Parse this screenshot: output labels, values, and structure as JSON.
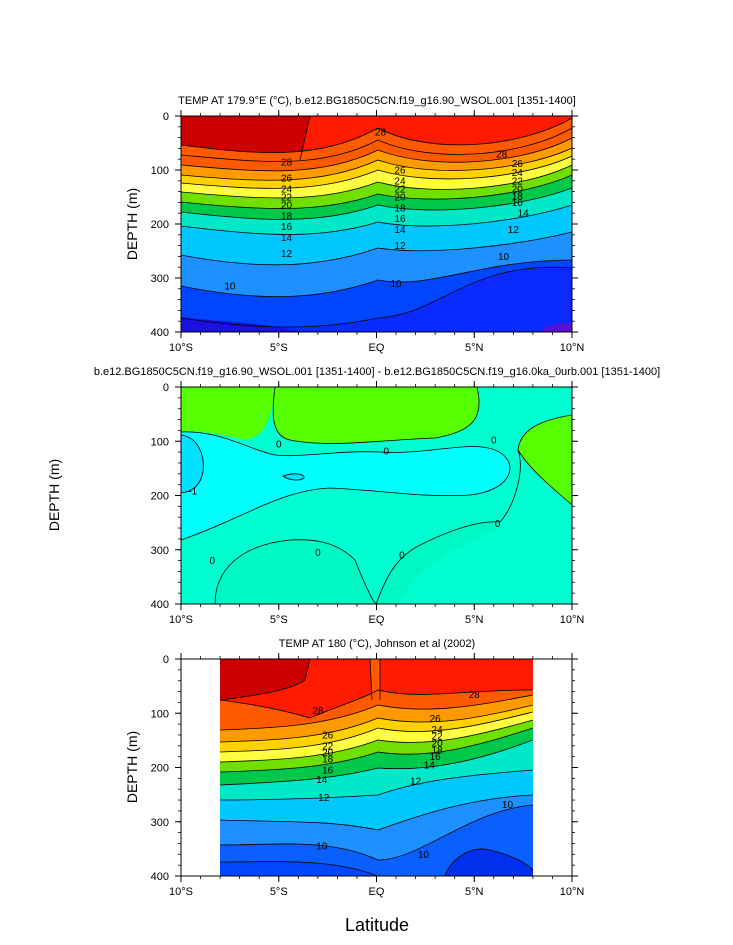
{
  "page": {
    "outer_ylabel": "DEPTH (m)",
    "xlabel": "Latitude"
  },
  "colors": {
    "warm_28plus": "#cc0000",
    "t26_28": "#ff1a00",
    "t24_26": "#ff5a00",
    "t22_24": "#ff9a00",
    "t20_22": "#ffd200",
    "t18_20": "#ffff40",
    "t16_18": "#70e000",
    "t14_16": "#00c84a",
    "t12_14": "#00e8c8",
    "t10_12": "#00c8ff",
    "t8_10": "#1e90ff",
    "t6_8": "#0046ff",
    "t_lt6": "#2a1aff",
    "diff_pos": "#55ff00",
    "diff_0": "#00ffd0",
    "diff_neg": "#00e0ff"
  },
  "chart_data": [
    {
      "type": "contour",
      "title": "TEMP AT 179.9°E (°C), b.e12.BG1850C5CN.f19_g16.90_WSOL.001 [1351-1400]",
      "ylabel": "DEPTH (m)",
      "xticks": [
        "10°S",
        "5°S",
        "EQ",
        "5°N",
        "10°N"
      ],
      "yticks": [
        "0",
        "100",
        "200",
        "300",
        "400"
      ],
      "xlim": [
        -10,
        10
      ],
      "ylim": [
        400,
        0
      ],
      "contour_labels": [
        {
          "text": "28",
          "lat": 0.2,
          "depth": 30
        },
        {
          "text": "28",
          "lat": 6.4,
          "depth": 70
        },
        {
          "text": "28",
          "lat": -4.6,
          "depth": 85
        },
        {
          "text": "26",
          "lat": -4.6,
          "depth": 115
        },
        {
          "text": "26",
          "lat": 1.2,
          "depth": 100
        },
        {
          "text": "26",
          "lat": 7.2,
          "depth": 88
        },
        {
          "text": "24",
          "lat": -4.6,
          "depth": 135
        },
        {
          "text": "24",
          "lat": 1.2,
          "depth": 120
        },
        {
          "text": "24",
          "lat": 7.2,
          "depth": 105
        },
        {
          "text": "22",
          "lat": -4.6,
          "depth": 150
        },
        {
          "text": "22",
          "lat": 1.2,
          "depth": 135
        },
        {
          "text": "22",
          "lat": 7.2,
          "depth": 120
        },
        {
          "text": "20",
          "lat": -4.6,
          "depth": 165
        },
        {
          "text": "20",
          "lat": 1.2,
          "depth": 150
        },
        {
          "text": "20",
          "lat": 7.2,
          "depth": 135
        },
        {
          "text": "18",
          "lat": -4.6,
          "depth": 185
        },
        {
          "text": "18",
          "lat": 1.2,
          "depth": 170
        },
        {
          "text": "18",
          "lat": 7.2,
          "depth": 148
        },
        {
          "text": "16",
          "lat": -4.6,
          "depth": 205
        },
        {
          "text": "16",
          "lat": 1.2,
          "depth": 190
        },
        {
          "text": "16",
          "lat": 7.2,
          "depth": 160
        },
        {
          "text": "14",
          "lat": -4.6,
          "depth": 225
        },
        {
          "text": "14",
          "lat": 1.2,
          "depth": 210
        },
        {
          "text": "14",
          "lat": 7.5,
          "depth": 180
        },
        {
          "text": "12",
          "lat": -4.6,
          "depth": 255
        },
        {
          "text": "12",
          "lat": 1.2,
          "depth": 240
        },
        {
          "text": "12",
          "lat": 7.0,
          "depth": 210
        },
        {
          "text": "10",
          "lat": -7.5,
          "depth": 315
        },
        {
          "text": "10",
          "lat": 1.0,
          "depth": 310
        },
        {
          "text": "10",
          "lat": 6.5,
          "depth": 260
        }
      ]
    },
    {
      "type": "contour",
      "title": "b.e12.BG1850C5CN.f19_g16.90_WSOL.001 [1351-1400] - b.e12.BG1850C5CN.f19_g16.0ka_0urb.001 [1351-1400]",
      "ylabel": "DEPTH (m)",
      "xticks": [
        "10°S",
        "5°S",
        "EQ",
        "5°N",
        "10°N"
      ],
      "yticks": [
        "0",
        "100",
        "200",
        "300",
        "400"
      ],
      "xlim": [
        -10,
        10
      ],
      "ylim": [
        400,
        0
      ],
      "contour_labels": [
        {
          "text": "0",
          "lat": -5.0,
          "depth": 105
        },
        {
          "text": "0",
          "lat": 0.5,
          "depth": 118
        },
        {
          "text": "0",
          "lat": 6.0,
          "depth": 98
        },
        {
          "text": "-1",
          "lat": -9.4,
          "depth": 192
        },
        {
          "text": "0",
          "lat": 6.2,
          "depth": 252
        },
        {
          "text": "0",
          "lat": -3.0,
          "depth": 305
        },
        {
          "text": "0",
          "lat": -8.4,
          "depth": 320
        },
        {
          "text": "0",
          "lat": 1.3,
          "depth": 310
        }
      ]
    },
    {
      "type": "contour",
      "title": "TEMP AT 180 (°C), Johnson et al (2002)",
      "ylabel": "DEPTH (m)",
      "xticks": [
        "10°S",
        "5°S",
        "EQ",
        "5°N",
        "10°N"
      ],
      "yticks": [
        "0",
        "100",
        "200",
        "300",
        "400"
      ],
      "xlim": [
        -10,
        10
      ],
      "ylim": [
        400,
        0
      ],
      "data_xlim": [
        -8,
        8
      ],
      "contour_labels": [
        {
          "text": "28",
          "lat": 5.0,
          "depth": 65
        },
        {
          "text": "28",
          "lat": -3.0,
          "depth": 95
        },
        {
          "text": "26",
          "lat": 3.0,
          "depth": 110
        },
        {
          "text": "26",
          "lat": -2.5,
          "depth": 140
        },
        {
          "text": "24",
          "lat": 3.1,
          "depth": 130
        },
        {
          "text": "22",
          "lat": -2.5,
          "depth": 160
        },
        {
          "text": "22",
          "lat": 3.1,
          "depth": 142
        },
        {
          "text": "20",
          "lat": -2.5,
          "depth": 172
        },
        {
          "text": "20",
          "lat": 3.1,
          "depth": 155
        },
        {
          "text": "18",
          "lat": -2.5,
          "depth": 184
        },
        {
          "text": "18",
          "lat": 3.1,
          "depth": 168
        },
        {
          "text": "16",
          "lat": -2.5,
          "depth": 205
        },
        {
          "text": "16",
          "lat": 3.0,
          "depth": 180
        },
        {
          "text": "14",
          "lat": -2.8,
          "depth": 222
        },
        {
          "text": "14",
          "lat": 2.7,
          "depth": 195
        },
        {
          "text": "12",
          "lat": -2.7,
          "depth": 255
        },
        {
          "text": "12",
          "lat": 2.0,
          "depth": 225
        },
        {
          "text": "10",
          "lat": 6.7,
          "depth": 268
        },
        {
          "text": "10",
          "lat": -2.8,
          "depth": 345
        },
        {
          "text": "10",
          "lat": 2.4,
          "depth": 360
        }
      ]
    }
  ]
}
